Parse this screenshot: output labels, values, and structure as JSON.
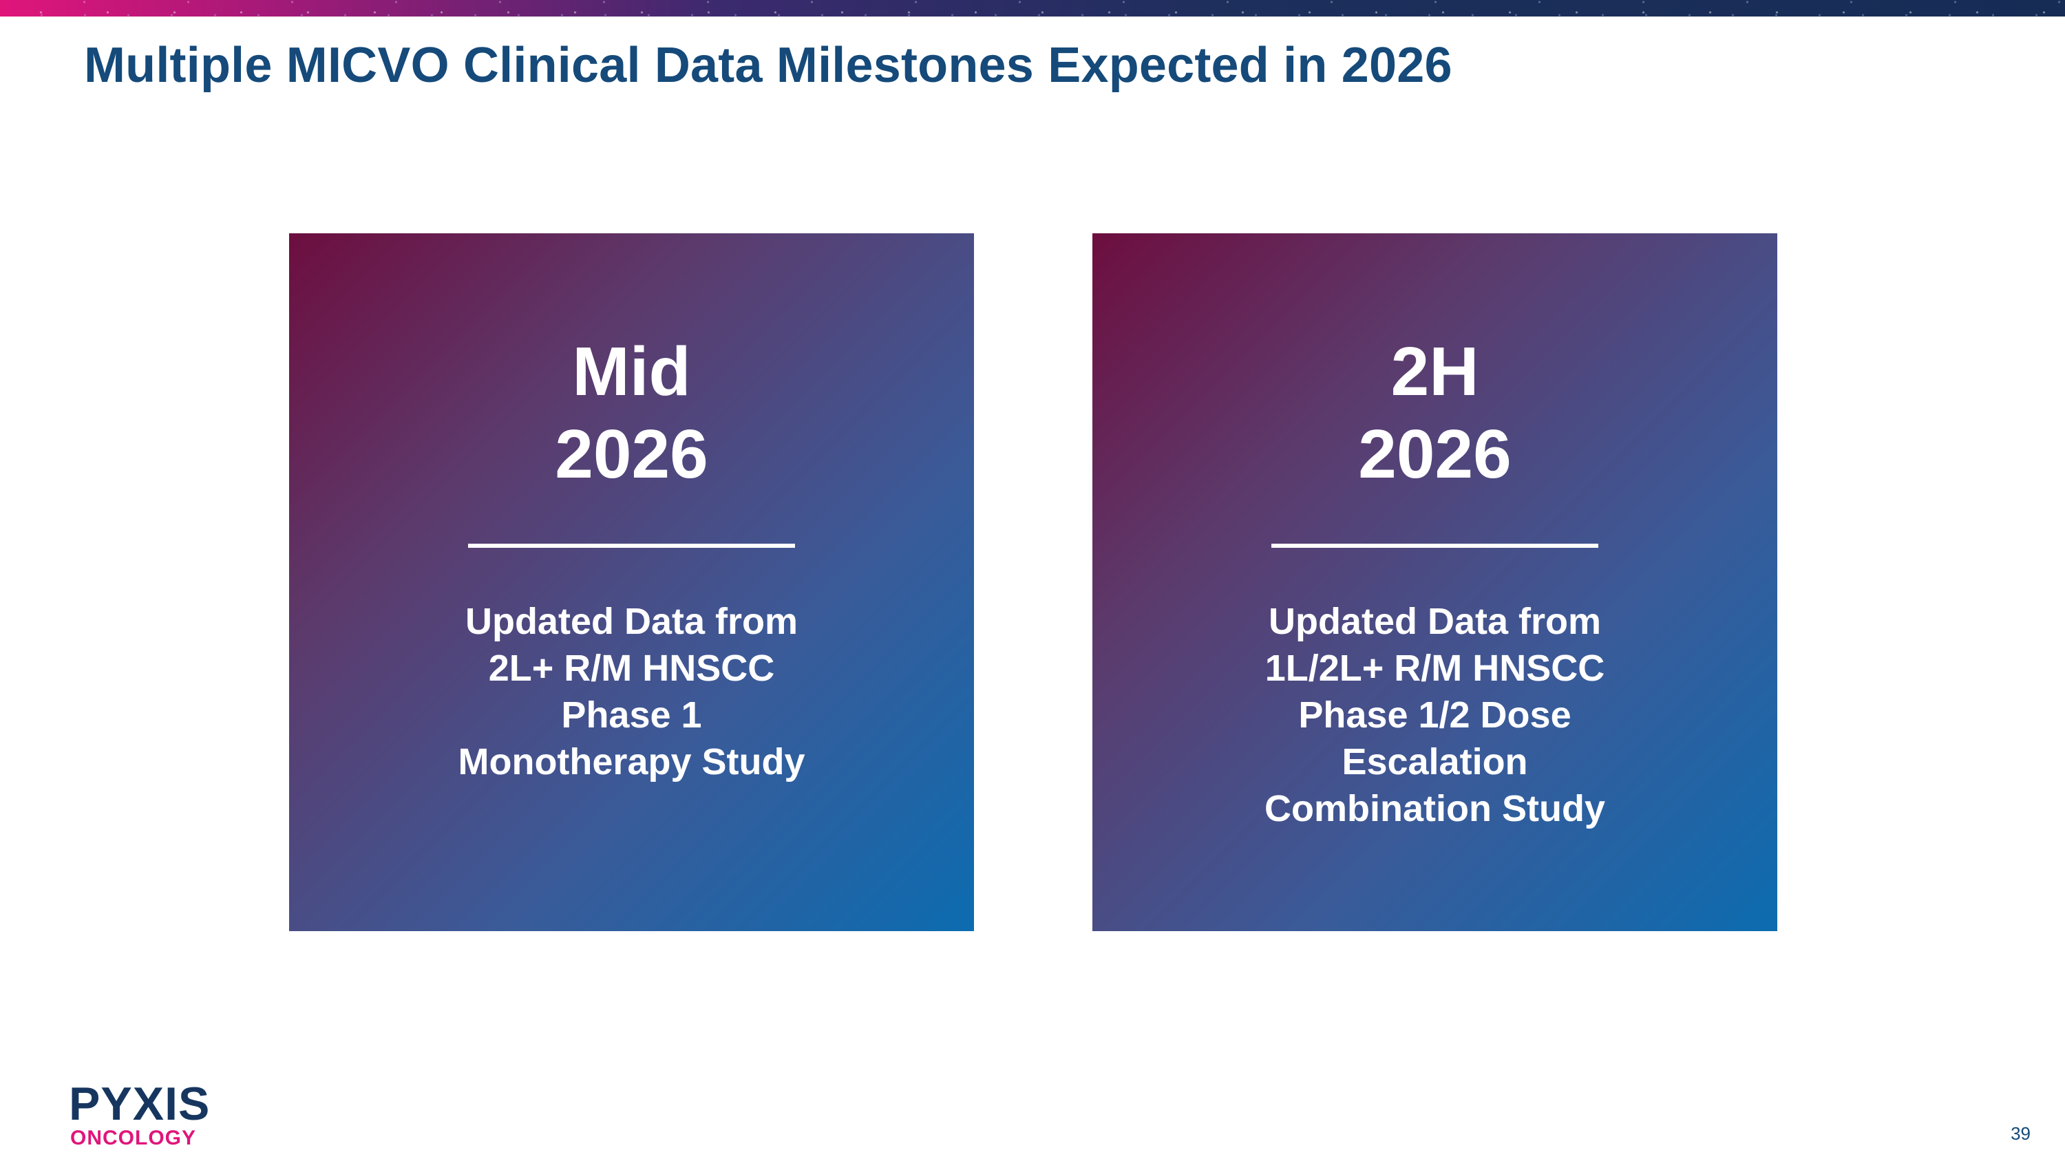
{
  "slide": {
    "title": "Multiple MICVO Clinical Data Milestones Expected in 2026",
    "page_number": "39"
  },
  "milestones": [
    {
      "timing": "Mid\n2026",
      "description": "Updated Data from\n2L+ R/M HNSCC\nPhase 1\nMonotherapy Study"
    },
    {
      "timing": "2H\n2026",
      "description": "Updated Data from\n1L/2L+ R/M HNSCC\nPhase 1/2 Dose\nEscalation\nCombination Study"
    }
  ],
  "logo": {
    "name": "PYXIS",
    "subtitle": "ONCOLOGY"
  },
  "colors": {
    "title": "#154a7a",
    "accent_pink": "#e0157a",
    "card_gradient_start": "#6d0e3f",
    "card_gradient_end": "#0c6cb0",
    "logo_navy": "#16365f"
  }
}
